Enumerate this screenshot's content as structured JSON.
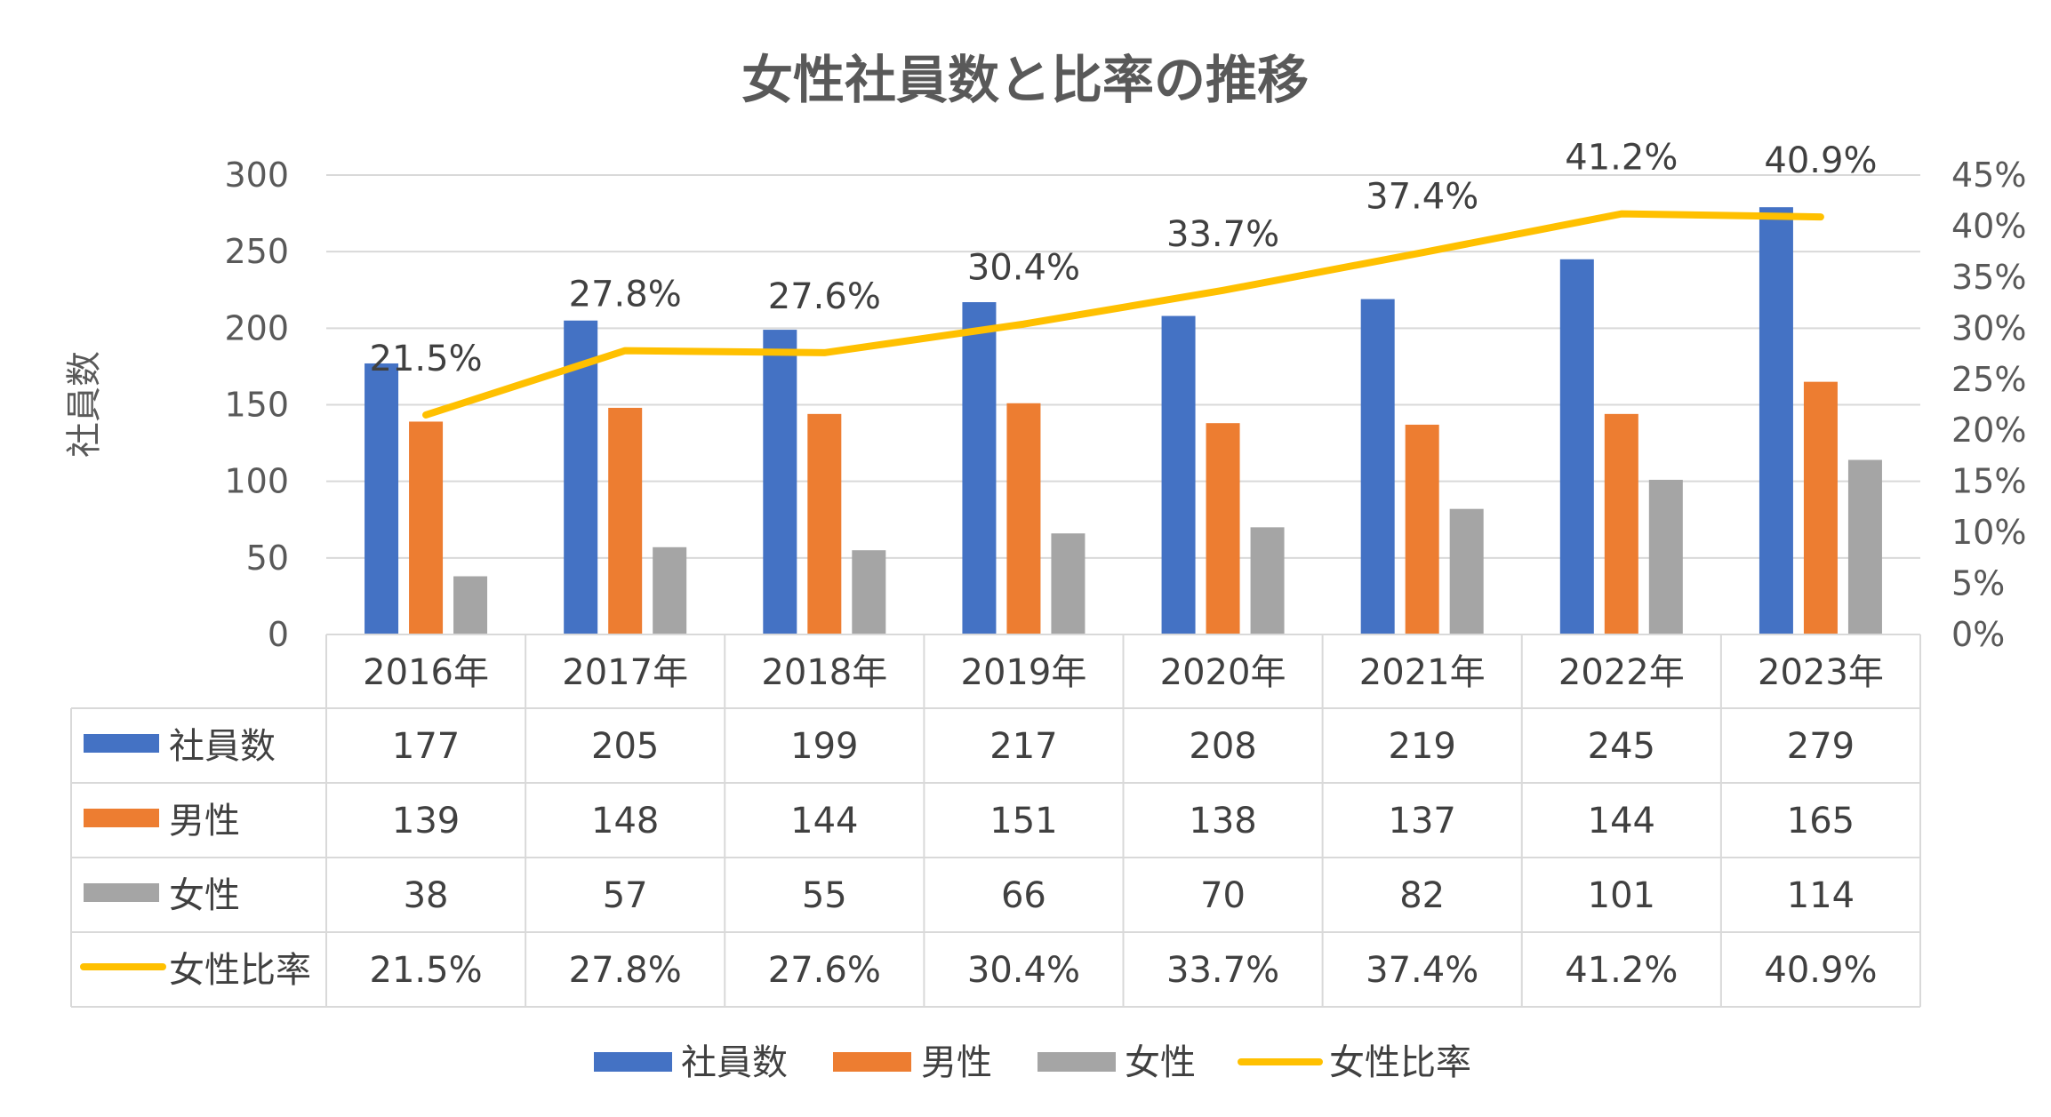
{
  "chart_data": {
    "type": "bar",
    "title": "女性社員数と比率の推移",
    "ylabel": "社員数",
    "ylim": [
      0,
      300
    ],
    "yticks": [
      "0",
      "50",
      "100",
      "150",
      "200",
      "250",
      "300"
    ],
    "y2lim": [
      0,
      45
    ],
    "y2ticks": [
      "0%",
      "5%",
      "10%",
      "15%",
      "20%",
      "25%",
      "30%",
      "35%",
      "40%",
      "45%"
    ],
    "categories": [
      "2016年",
      "2017年",
      "2018年",
      "2019年",
      "2020年",
      "2021年",
      "2022年",
      "2023年"
    ],
    "series": [
      {
        "name": "社員数",
        "type": "bar",
        "color": "#4472C4",
        "values": [
          177,
          205,
          199,
          217,
          208,
          219,
          245,
          279
        ],
        "labels": [
          "177",
          "205",
          "199",
          "217",
          "208",
          "219",
          "245",
          "279"
        ]
      },
      {
        "name": "男性",
        "type": "bar",
        "color": "#ED7D31",
        "values": [
          139,
          148,
          144,
          151,
          138,
          137,
          144,
          165
        ],
        "labels": [
          "139",
          "148",
          "144",
          "151",
          "138",
          "137",
          "144",
          "165"
        ]
      },
      {
        "name": "女性",
        "type": "bar",
        "color": "#A5A5A5",
        "values": [
          38,
          57,
          55,
          66,
          70,
          82,
          101,
          114
        ],
        "labels": [
          "38",
          "57",
          "55",
          "66",
          "70",
          "82",
          "101",
          "114"
        ]
      },
      {
        "name": "女性比率",
        "type": "line",
        "axis": "secondary",
        "color": "#FFC000",
        "values": [
          21.5,
          27.8,
          27.6,
          30.4,
          33.7,
          37.4,
          41.2,
          40.9
        ],
        "labels": [
          "21.5%",
          "27.8%",
          "27.6%",
          "30.4%",
          "33.7%",
          "37.4%",
          "41.2%",
          "40.9%"
        ]
      }
    ],
    "grid": true,
    "legend": "bottom",
    "data_table": true
  }
}
